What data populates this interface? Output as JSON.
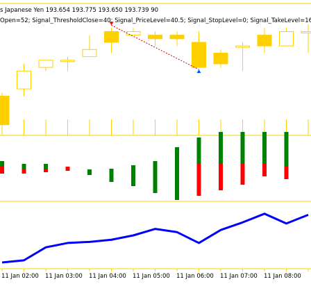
{
  "header": {
    "symbol_line": "s Japanese Yen  193.654 193.775 193.650 193.739  90",
    "params_line": "Open=52; Signal_ThresholdClose=40; Signal_PriceLevel=40.5; Signal_StopLevel=0; Signal_TakeLevel=16."
  },
  "colors": {
    "frame": "#ffd000",
    "candle": "#ffd000",
    "bull_bar": "#008000",
    "bear_bar": "#ff0000",
    "line": "#0000ff",
    "signal_arrow_sell": "#ff0000",
    "signal_arrow_buy": "#0050ff",
    "signal_dash": "#c00000"
  },
  "chart_data": {
    "type": "candlestick",
    "candles": [
      {
        "o": 193.48,
        "h": 193.49,
        "c": 193.4,
        "l": 193.39
      },
      {
        "o": 193.5,
        "h": 193.57,
        "c": 193.55,
        "l": 193.48
      },
      {
        "o": 193.56,
        "h": 193.58,
        "c": 193.58,
        "l": 193.55
      },
      {
        "o": 193.58,
        "h": 193.59,
        "c": 193.58,
        "l": 193.55
      },
      {
        "o": 193.59,
        "h": 193.65,
        "c": 193.61,
        "l": 193.59
      },
      {
        "o": 193.66,
        "h": 193.67,
        "c": 193.63,
        "l": 193.6
      },
      {
        "o": 193.65,
        "h": 193.67,
        "c": 193.66,
        "l": 193.65
      },
      {
        "o": 193.65,
        "h": 193.66,
        "c": 193.64,
        "l": 193.62
      },
      {
        "o": 193.65,
        "h": 193.66,
        "c": 193.64,
        "l": 193.62
      },
      {
        "o": 193.63,
        "h": 193.66,
        "c": 193.56,
        "l": 193.56
      },
      {
        "o": 193.6,
        "h": 193.61,
        "c": 193.57,
        "l": 193.56
      },
      {
        "o": 193.62,
        "h": 193.63,
        "c": 193.62,
        "l": 193.55
      },
      {
        "o": 193.65,
        "h": 193.67,
        "c": 193.62,
        "l": 193.6
      },
      {
        "o": 193.62,
        "h": 193.67,
        "c": 193.66,
        "l": 193.62
      },
      {
        "o": 193.66,
        "h": 193.68,
        "c": 193.66,
        "l": 193.6
      }
    ],
    "osc_bars": [
      {
        "g": [
          2,
          10
        ],
        "r": [
          -8,
          2
        ]
      },
      {
        "g": [
          -2,
          6
        ],
        "r": [
          -2,
          -8
        ]
      },
      {
        "g": [
          -1,
          6
        ],
        "r": [
          -1,
          -6
        ]
      },
      {
        "g": null,
        "r": [
          2,
          -4
        ]
      },
      {
        "g": [
          -2,
          -10
        ],
        "r": null
      },
      {
        "g": [
          -1,
          -20
        ],
        "r": null
      },
      {
        "g": [
          4,
          -26
        ],
        "r": null
      },
      {
        "g": [
          10,
          -36
        ],
        "r": null
      },
      {
        "g": [
          30,
          -46
        ],
        "r": null
      },
      {
        "g": [
          44,
          6
        ],
        "r": [
          6,
          -40
        ]
      },
      {
        "g": [
          52,
          6
        ],
        "r": [
          6,
          -32
        ]
      },
      {
        "g": [
          52,
          6
        ],
        "r": [
          6,
          -24
        ]
      },
      {
        "g": [
          52,
          6
        ],
        "r": [
          6,
          -12
        ]
      },
      {
        "g": [
          52,
          2
        ],
        "r": [
          2,
          -16
        ]
      }
    ],
    "line_values": [
      0,
      2,
      14,
      18,
      19,
      21,
      25,
      31,
      28,
      18,
      30,
      37,
      45,
      36,
      44
    ],
    "time_labels": [
      "11 Jan 02:00",
      "11 Jan 03:00",
      "11 Jan 04:00",
      "11 Jan 05:00",
      "11 Jan 06:00",
      "11 Jan 07:00",
      "11 Jan 08:00"
    ]
  }
}
